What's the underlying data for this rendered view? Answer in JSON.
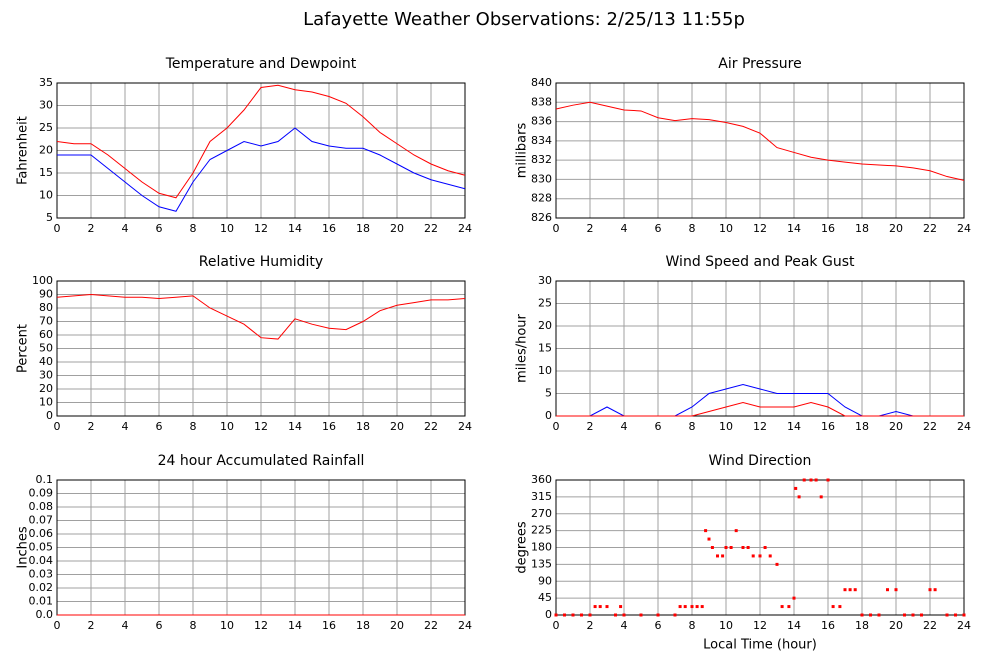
{
  "title": "Lafayette Weather Observations: 2/25/13 11:55p",
  "chart_data": [
    {
      "type": "line",
      "title": "Temperature and Dewpoint",
      "ylabel": "Fahrenheit",
      "x": [
        0,
        1,
        2,
        3,
        4,
        5,
        6,
        7,
        8,
        9,
        10,
        11,
        12,
        13,
        14,
        15,
        16,
        17,
        18,
        19,
        20,
        21,
        22,
        23,
        24
      ],
      "series": [
        {
          "color": "#ff0000",
          "values": [
            22,
            21.5,
            21.5,
            19,
            16,
            13,
            10.5,
            9.5,
            15,
            22,
            25,
            29,
            34,
            34.5,
            33.5,
            33,
            32,
            30.5,
            27.5,
            24,
            21.5,
            19,
            17,
            15.5,
            14.5
          ]
        },
        {
          "color": "#0000ff",
          "values": [
            19,
            19,
            19,
            16,
            13,
            10,
            7.5,
            6.5,
            13,
            18,
            20,
            22,
            21,
            22,
            25,
            22,
            21,
            20.5,
            20.5,
            19,
            17,
            15,
            13.5,
            12.5,
            11.5
          ]
        }
      ],
      "xlim": [
        0,
        24
      ],
      "xticks": [
        0,
        2,
        4,
        6,
        8,
        10,
        12,
        14,
        16,
        18,
        20,
        22,
        24
      ],
      "ylim": [
        5,
        35
      ],
      "yticks": [
        5,
        10,
        15,
        20,
        25,
        30,
        35
      ],
      "grid": true
    },
    {
      "type": "line",
      "title": "Air Pressure",
      "ylabel": "millibars",
      "x": [
        0,
        1,
        2,
        3,
        4,
        5,
        6,
        7,
        8,
        9,
        10,
        11,
        12,
        13,
        14,
        15,
        16,
        17,
        18,
        19,
        20,
        21,
        22,
        23,
        24
      ],
      "series": [
        {
          "color": "#ff0000",
          "values": [
            837.3,
            837.7,
            838,
            837.6,
            837.2,
            837.1,
            836.4,
            836.1,
            836.3,
            836.2,
            835.9,
            835.5,
            834.8,
            833.3,
            832.8,
            832.3,
            832,
            831.8,
            831.6,
            831.5,
            831.4,
            831.2,
            830.9,
            830.3,
            829.9
          ]
        }
      ],
      "xlim": [
        0,
        24
      ],
      "xticks": [
        0,
        2,
        4,
        6,
        8,
        10,
        12,
        14,
        16,
        18,
        20,
        22,
        24
      ],
      "ylim": [
        826,
        840
      ],
      "yticks": [
        826,
        828,
        830,
        832,
        834,
        836,
        838,
        840
      ],
      "grid": true
    },
    {
      "type": "line",
      "title": "Relative Humidity",
      "ylabel": "Percent",
      "x": [
        0,
        1,
        2,
        3,
        4,
        5,
        6,
        7,
        8,
        9,
        10,
        11,
        12,
        13,
        14,
        15,
        16,
        17,
        18,
        19,
        20,
        21,
        22,
        23,
        24
      ],
      "series": [
        {
          "color": "#ff0000",
          "values": [
            88,
            89,
            90,
            89,
            88,
            88,
            87,
            88,
            89,
            80,
            74,
            68,
            58,
            57,
            72,
            68,
            65,
            64,
            70,
            78,
            82,
            84,
            86,
            86,
            87
          ]
        }
      ],
      "xlim": [
        0,
        24
      ],
      "xticks": [
        0,
        2,
        4,
        6,
        8,
        10,
        12,
        14,
        16,
        18,
        20,
        22,
        24
      ],
      "ylim": [
        0,
        100
      ],
      "yticks": [
        0,
        10,
        20,
        30,
        40,
        50,
        60,
        70,
        80,
        90,
        100
      ],
      "grid": true
    },
    {
      "type": "line",
      "title": "Wind Speed and Peak Gust",
      "ylabel": "miles/hour",
      "x": [
        0,
        1,
        2,
        3,
        4,
        5,
        6,
        7,
        8,
        9,
        10,
        11,
        12,
        13,
        14,
        15,
        16,
        17,
        18,
        19,
        20,
        21,
        22,
        23,
        24
      ],
      "series": [
        {
          "color": "#0000ff",
          "values": [
            0,
            0,
            0,
            2,
            0,
            0,
            0,
            0,
            2,
            5,
            6,
            7,
            6,
            5,
            5,
            5,
            5,
            2,
            0,
            0,
            1,
            0,
            0,
            0,
            0
          ]
        },
        {
          "color": "#ff0000",
          "values": [
            0,
            0,
            0,
            0,
            0,
            0,
            0,
            0,
            0,
            1,
            2,
            3,
            2,
            2,
            2,
            3,
            2,
            0,
            0,
            0,
            0,
            0,
            0,
            0,
            0
          ]
        }
      ],
      "xlim": [
        0,
        24
      ],
      "xticks": [
        0,
        2,
        4,
        6,
        8,
        10,
        12,
        14,
        16,
        18,
        20,
        22,
        24
      ],
      "ylim": [
        0,
        30
      ],
      "yticks": [
        0,
        5,
        10,
        15,
        20,
        25,
        30
      ],
      "grid": true
    },
    {
      "type": "line",
      "title": "24 hour Accumulated Rainfall",
      "ylabel": "Inches",
      "x": [
        0,
        1,
        2,
        3,
        4,
        5,
        6,
        7,
        8,
        9,
        10,
        11,
        12,
        13,
        14,
        15,
        16,
        17,
        18,
        19,
        20,
        21,
        22,
        23,
        24
      ],
      "series": [
        {
          "color": "#ff0000",
          "values": [
            0,
            0,
            0,
            0,
            0,
            0,
            0,
            0,
            0,
            0,
            0,
            0,
            0,
            0,
            0,
            0,
            0,
            0,
            0,
            0,
            0,
            0,
            0,
            0,
            0
          ]
        }
      ],
      "xlim": [
        0,
        24
      ],
      "xticks": [
        0,
        2,
        4,
        6,
        8,
        10,
        12,
        14,
        16,
        18,
        20,
        22,
        24
      ],
      "ylim": [
        0,
        0.1
      ],
      "yticks": [
        {
          "value": 0,
          "label": "0.0"
        },
        0.01,
        0.02,
        0.03,
        0.04,
        0.05,
        0.06,
        0.07,
        0.08,
        0.09,
        0.1
      ],
      "grid": true
    },
    {
      "type": "scatter",
      "title": "Wind Direction",
      "ylabel": "degrees",
      "xlabel": "Local Time (hour)",
      "x": [
        0,
        0.5,
        1,
        1.5,
        2,
        2.3,
        2.6,
        3,
        3.5,
        3.8,
        4,
        5,
        6,
        7,
        7.3,
        7.6,
        8,
        8.3,
        8.6,
        8.8,
        9,
        9.2,
        9.5,
        9.8,
        10,
        10.3,
        10.6,
        11,
        11.3,
        11.6,
        12,
        12.3,
        12.6,
        13,
        13.3,
        13.7,
        14,
        14.1,
        14.3,
        14.6,
        15,
        15.3,
        15.6,
        16,
        16.3,
        16.7,
        17,
        17.3,
        17.6,
        18,
        18.5,
        19,
        19.5,
        20,
        20.5,
        21,
        21.5,
        22,
        22.3,
        23,
        23.5,
        24
      ],
      "values": [
        0,
        0,
        0,
        0,
        0,
        22.5,
        22.5,
        22.5,
        0,
        22.5,
        0,
        0,
        0,
        0,
        22.5,
        22.5,
        22.5,
        22.5,
        22.5,
        225,
        202.5,
        180,
        157.5,
        157.5,
        180,
        180,
        225,
        180,
        180,
        157.5,
        157.5,
        180,
        157.5,
        135,
        22.5,
        22.5,
        45,
        337.5,
        315,
        360,
        360,
        360,
        315,
        360,
        22.5,
        22.5,
        67.5,
        67.5,
        67.5,
        0,
        0,
        0,
        67.5,
        67.5,
        0,
        0,
        0,
        67.5,
        67.5,
        0,
        0,
        0
      ],
      "color": "#ff0000",
      "xlim": [
        0,
        24
      ],
      "xticks": [
        0,
        2,
        4,
        6,
        8,
        10,
        12,
        14,
        16,
        18,
        20,
        22,
        24
      ],
      "ylim": [
        0,
        360
      ],
      "yticks": [
        0,
        45,
        90,
        135,
        180,
        225,
        270,
        315,
        360
      ],
      "grid": true
    }
  ]
}
